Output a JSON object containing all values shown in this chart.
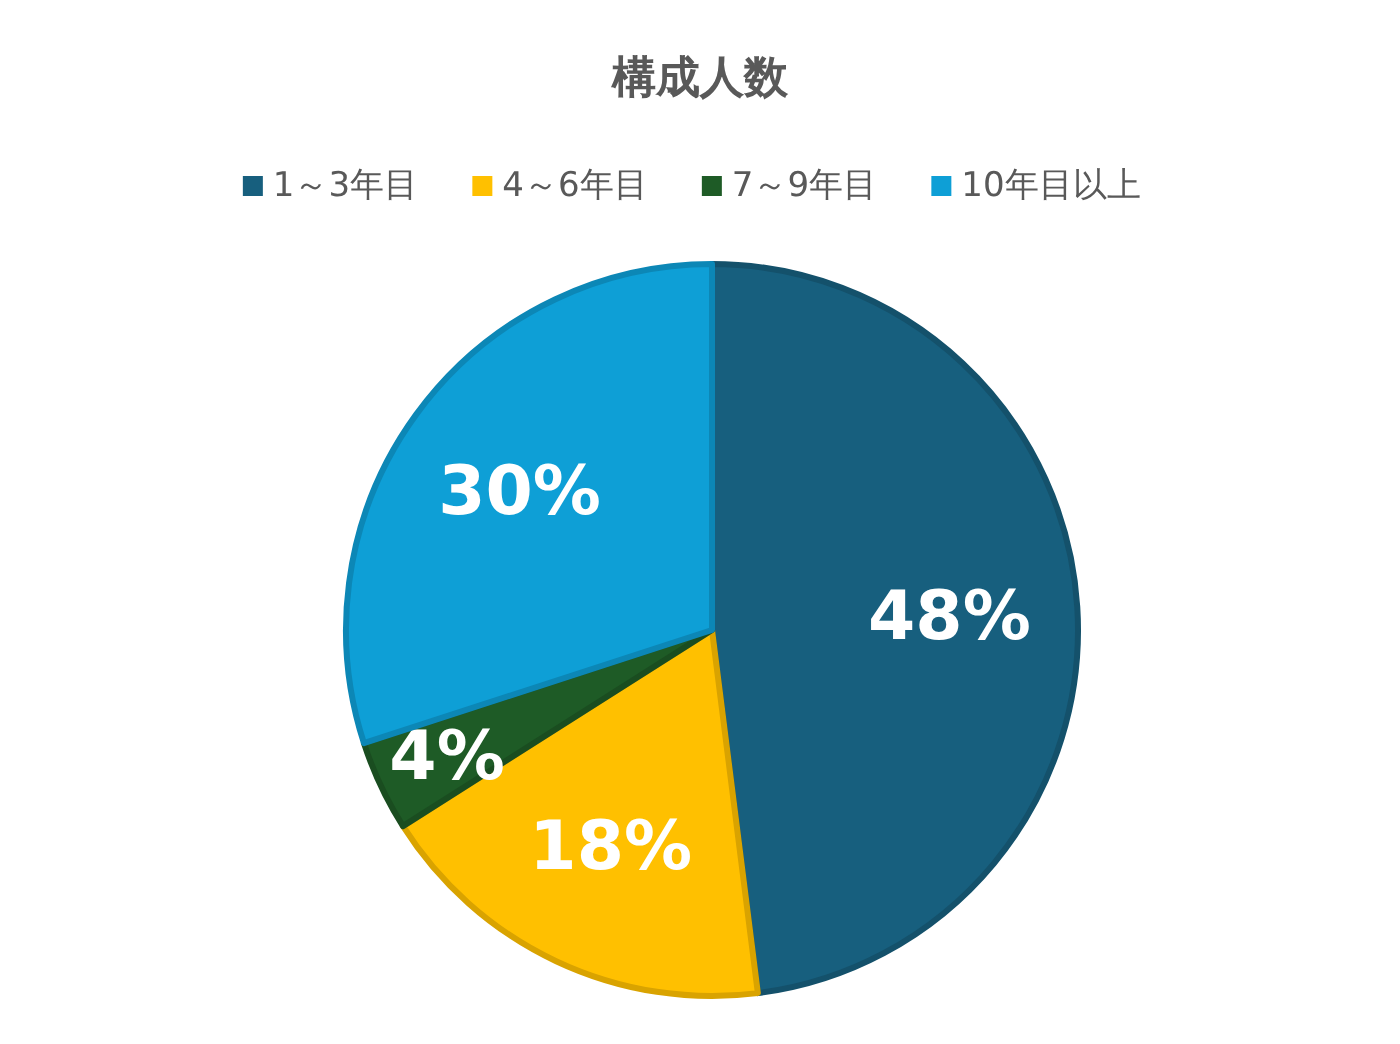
{
  "chart_data": {
    "type": "pie",
    "title": "構成人数",
    "categories": [
      "1～3年目",
      "4～6年目",
      "7～9年目",
      "10年目以上"
    ],
    "values": [
      48,
      18,
      4,
      30
    ],
    "colors": [
      "#175f7e",
      "#ffc000",
      "#1e5b26",
      "#0e9fd6"
    ],
    "value_labels": [
      "48%",
      "18%",
      "4%",
      "30%"
    ],
    "legend": "top"
  }
}
